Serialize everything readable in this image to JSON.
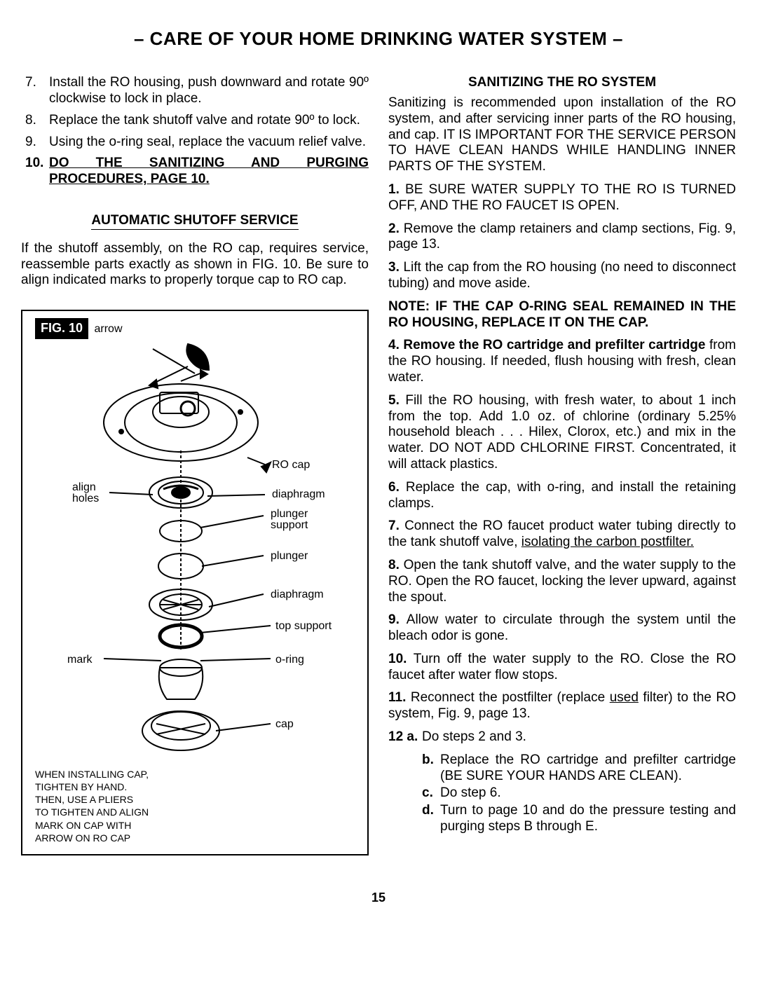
{
  "title": "– CARE OF YOUR HOME DRINKING WATER SYSTEM –",
  "page_number": "15",
  "left": {
    "steps": [
      {
        "num": "7.",
        "text": "Install the RO housing, push downward and rotate 90º clockwise to lock in place."
      },
      {
        "num": "8.",
        "text": "Replace the tank shutoff valve and rotate 90º to lock."
      },
      {
        "num": "9.",
        "text": "Using the o-ring seal, replace the vacuum relief valve."
      },
      {
        "num": "10.",
        "bold": true,
        "underline": true,
        "text": "DO THE SANITIZING AND PURGING PROCEDURES, PAGE 10."
      }
    ],
    "section_header": "AUTOMATIC SHUTOFF SERVICE",
    "section_body": "If the shutoff assembly, on the RO cap, requires service, reassemble parts exactly as shown in FIG. 10. Be sure to align indicated marks to properly torque cap to RO cap.",
    "figure": {
      "label": "FIG. 10",
      "labels": {
        "arrow": "arrow",
        "ro_cap": "RO cap",
        "diaphragm1": "diaphragm",
        "plunger_support": "plunger\nsupport",
        "align_holes": "align\nholes",
        "plunger": "plunger",
        "diaphragm2": "diaphragm",
        "top_support": "top support",
        "mark": "mark",
        "o_ring": "o-ring",
        "cap": "cap"
      },
      "note": "WHEN INSTALLING CAP,\nTIGHTEN BY HAND.\nTHEN, USE A PLIERS\nTO TIGHTEN AND ALIGN\nMARK ON CAP WITH\nARROW ON RO CAP"
    }
  },
  "right": {
    "header": "SANITIZING THE RO SYSTEM",
    "intro": "Sanitizing is recommended upon installation of the RO system, and after servicing inner parts of the RO housing, and cap. IT IS IMPORTANT FOR THE SERVICE PERSON TO HAVE CLEAN HANDS WHILE HANDLING INNER PARTS OF THE SYSTEM.",
    "items": [
      {
        "num": "1.",
        "html": "BE SURE WATER SUPPLY TO THE RO IS TURNED OFF, AND THE RO FAUCET IS OPEN."
      },
      {
        "num": "2.",
        "html": "Remove the clamp retainers and clamp sections, Fig. 9, page 13."
      },
      {
        "num": "3.",
        "html": "Lift the cap from the RO housing (no need to disconnect tubing) and move aside."
      }
    ],
    "note1": "NOTE: IF THE CAP O-RING SEAL REMAINED IN THE RO HOUSING, REPLACE IT ON THE CAP.",
    "items2": [
      {
        "num": "4.",
        "bold_lead": "Remove the RO cartridge and prefilter cartridge",
        "rest": " from the RO housing. If needed, flush housing with fresh, clean water."
      },
      {
        "num": "5.",
        "html": "Fill the RO housing, with fresh water, to about 1 inch from the top. Add 1.0 oz. of chlorine (ordinary 5.25% household bleach . . . Hilex, Clorox, etc.) and mix in the water. DO NOT ADD CHLORINE FIRST. Concentrated, it will attack plastics."
      },
      {
        "num": "6.",
        "html": "Replace the cap, with o-ring, and install the retaining clamps."
      },
      {
        "num": "7.",
        "html": "Connect the RO faucet product water tubing directly to the tank shutoff valve, ",
        "underline_tail": "isolating the carbon postfilter."
      },
      {
        "num": "8.",
        "html": "Open the tank shutoff valve, and the water supply to the RO. Open the RO faucet, locking the lever upward, against the spout."
      },
      {
        "num": "9.",
        "html": "Allow water to circulate through the system until the bleach odor is gone."
      },
      {
        "num": "10.",
        "html": "Turn off the water supply to the RO. Close the RO faucet after water flow stops."
      },
      {
        "num": "11.",
        "html": "Reconnect the postfilter (replace ",
        "underline_mid": "used",
        "html_tail": " filter) to the RO system, Fig. 9, page 13."
      }
    ],
    "twelve": {
      "num": "12 a.",
      "a": "Do steps 2 and 3.",
      "sub": [
        {
          "letter": "b.",
          "text": "Replace the RO cartridge and prefilter cartridge (BE SURE YOUR HANDS ARE CLEAN)."
        },
        {
          "letter": "c.",
          "text": "Do step 6."
        },
        {
          "letter": "d.",
          "text": "Turn to page 10 and do the pressure testing and purging steps B through E."
        }
      ]
    }
  }
}
